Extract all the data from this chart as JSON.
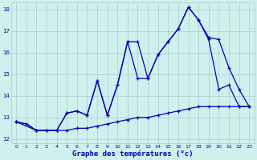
{
  "xlabel": "Graphe des températures (°c)",
  "bg_color": "#cff0ec",
  "grid_color": "#aacccc",
  "line_color": "#0000bb",
  "xlim": [
    -0.5,
    23.5
  ],
  "ylim": [
    11.8,
    18.3
  ],
  "yticks": [
    12,
    13,
    14,
    15,
    16,
    17,
    18
  ],
  "xticks": [
    0,
    1,
    2,
    3,
    4,
    5,
    6,
    7,
    8,
    9,
    10,
    11,
    12,
    13,
    14,
    15,
    16,
    17,
    18,
    19,
    20,
    21,
    22,
    23
  ],
  "series1_x": [
    0,
    1,
    2,
    3,
    4,
    5,
    6,
    7,
    8,
    9,
    10,
    11,
    12,
    13,
    14,
    15,
    16,
    17,
    18,
    19,
    20,
    21,
    22,
    23
  ],
  "series1_y": [
    12.8,
    12.7,
    12.4,
    12.4,
    12.4,
    12.4,
    12.5,
    12.5,
    12.6,
    12.7,
    12.8,
    12.9,
    13.0,
    13.0,
    13.1,
    13.2,
    13.3,
    13.4,
    13.5,
    13.5,
    13.5,
    13.5,
    13.5,
    13.5
  ],
  "series2_x": [
    0,
    2,
    4,
    5,
    6,
    7,
    8,
    9,
    10,
    11,
    12,
    13,
    14,
    15,
    16,
    17,
    18,
    19,
    20,
    21,
    22,
    23
  ],
  "series2_y": [
    12.8,
    12.4,
    12.4,
    13.2,
    13.3,
    13.1,
    14.7,
    13.1,
    14.5,
    16.5,
    16.5,
    14.8,
    15.9,
    16.5,
    17.1,
    18.1,
    17.5,
    16.7,
    16.6,
    15.3,
    14.3,
    13.5
  ],
  "series3_x": [
    0,
    1,
    2,
    3,
    4,
    5,
    6,
    7,
    8,
    9,
    10,
    11,
    12,
    13,
    14,
    15,
    16,
    17,
    18,
    19,
    20,
    21,
    22,
    23
  ],
  "series3_y": [
    12.8,
    12.7,
    12.4,
    12.4,
    12.4,
    13.2,
    13.3,
    13.1,
    14.7,
    13.1,
    14.5,
    16.5,
    14.8,
    14.8,
    15.9,
    16.5,
    17.1,
    18.1,
    17.5,
    16.6,
    14.3,
    14.5,
    13.5,
    13.5
  ]
}
